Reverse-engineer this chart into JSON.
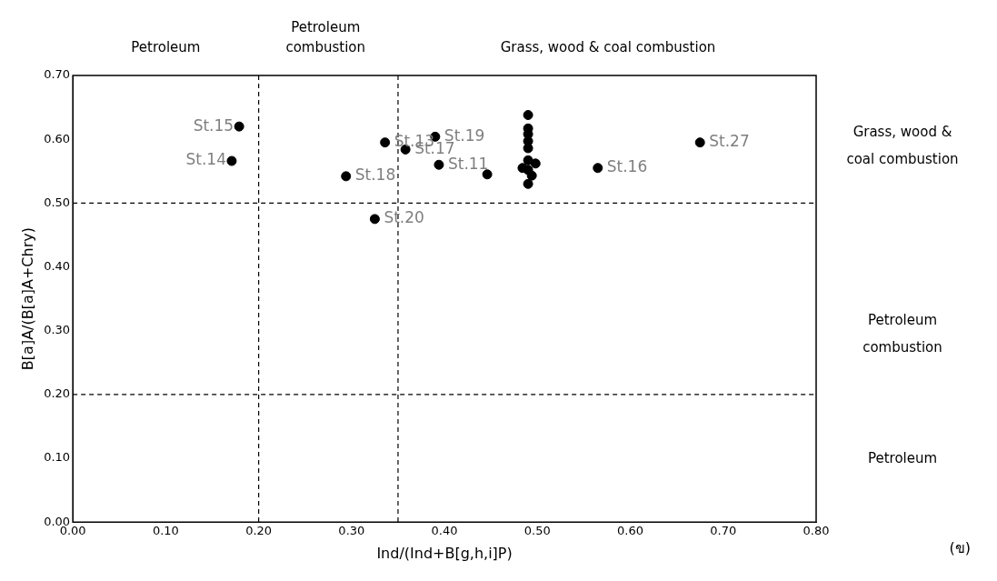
{
  "chart_data": {
    "type": "scatter",
    "xlabel": "Ind/(Ind+B[g,h,i]P)",
    "ylabel": "B[a]A/(B[a]A+Chry)",
    "x": [
      0.179,
      0.171,
      0.294,
      0.325,
      0.336,
      0.358,
      0.39,
      0.394,
      0.446,
      0.565,
      0.675,
      0.49,
      0.49,
      0.49,
      0.49,
      0.484,
      0.498,
      0.49,
      0.49,
      0.494,
      0.49,
      0.49
    ],
    "values": [
      0.62,
      0.566,
      0.542,
      0.475,
      0.595,
      0.584,
      0.604,
      0.56,
      0.545,
      0.555,
      0.595,
      0.638,
      0.617,
      0.608,
      0.567,
      0.555,
      0.562,
      0.552,
      0.53,
      0.543,
      0.597,
      0.586
    ],
    "color": "#000000",
    "marker": "circle",
    "grid": false,
    "legend": false,
    "xlim": [
      0,
      0.8
    ],
    "xticks": [
      {
        "value": 0,
        "label": "0.00"
      },
      {
        "value": 0.1,
        "label": "0.10"
      },
      {
        "value": 0.2,
        "label": "0.20"
      },
      {
        "value": 0.3,
        "label": "0.30"
      },
      {
        "value": 0.4,
        "label": "0.40"
      },
      {
        "value": 0.5,
        "label": "0.50"
      },
      {
        "value": 0.6,
        "label": "0.60"
      },
      {
        "value": 0.7,
        "label": "0.70"
      },
      {
        "value": 0.8,
        "label": "0.80"
      }
    ],
    "ylim": [
      0,
      0.7
    ],
    "yticks": [
      {
        "value": 0,
        "label": "0.00"
      },
      {
        "value": 0.1,
        "label": "0.10"
      },
      {
        "value": 0.2,
        "label": "0.20"
      },
      {
        "value": 0.3,
        "label": "0.30"
      },
      {
        "value": 0.4,
        "label": "0.40"
      },
      {
        "value": 0.5,
        "label": "0.50"
      },
      {
        "value": 0.6,
        "label": "0.60"
      },
      {
        "value": 0.7,
        "label": "0.70"
      }
    ],
    "ref_lines": [
      {
        "axis": "x",
        "value": 0.2,
        "line_style": "dashed"
      },
      {
        "axis": "x",
        "value": 0.35,
        "line_style": "dashed"
      },
      {
        "axis": "y",
        "value": 0.5,
        "line_style": "dashed"
      },
      {
        "axis": "y",
        "value": 0.2,
        "line_style": "dashed"
      }
    ],
    "annotations": [
      "Petroleum",
      "Petroleum combustion",
      "Grass, wood & coal combustion",
      "Grass, wood & coal combustion",
      "Petroleum combustion",
      "Petroleum",
      {
        "text": "St.15",
        "x": 0.179,
        "y": 0.62
      },
      {
        "text": "St.14",
        "x": 0.171,
        "y": 0.566
      },
      {
        "text": "St.18",
        "x": 0.294,
        "y": 0.542
      },
      {
        "text": "St.20",
        "x": 0.325,
        "y": 0.475
      },
      {
        "text": "St.13",
        "x": 0.336,
        "y": 0.595
      },
      {
        "text": "St.17",
        "x": 0.358,
        "y": 0.584
      },
      {
        "text": "St.19",
        "x": 0.39,
        "y": 0.604
      },
      {
        "text": "St.11",
        "x": 0.394,
        "y": 0.56
      },
      {
        "text": "St.16",
        "x": 0.565,
        "y": 0.555
      },
      {
        "text": "St.27",
        "x": 0.675,
        "y": 0.595
      },
      "(ข)"
    ]
  }
}
